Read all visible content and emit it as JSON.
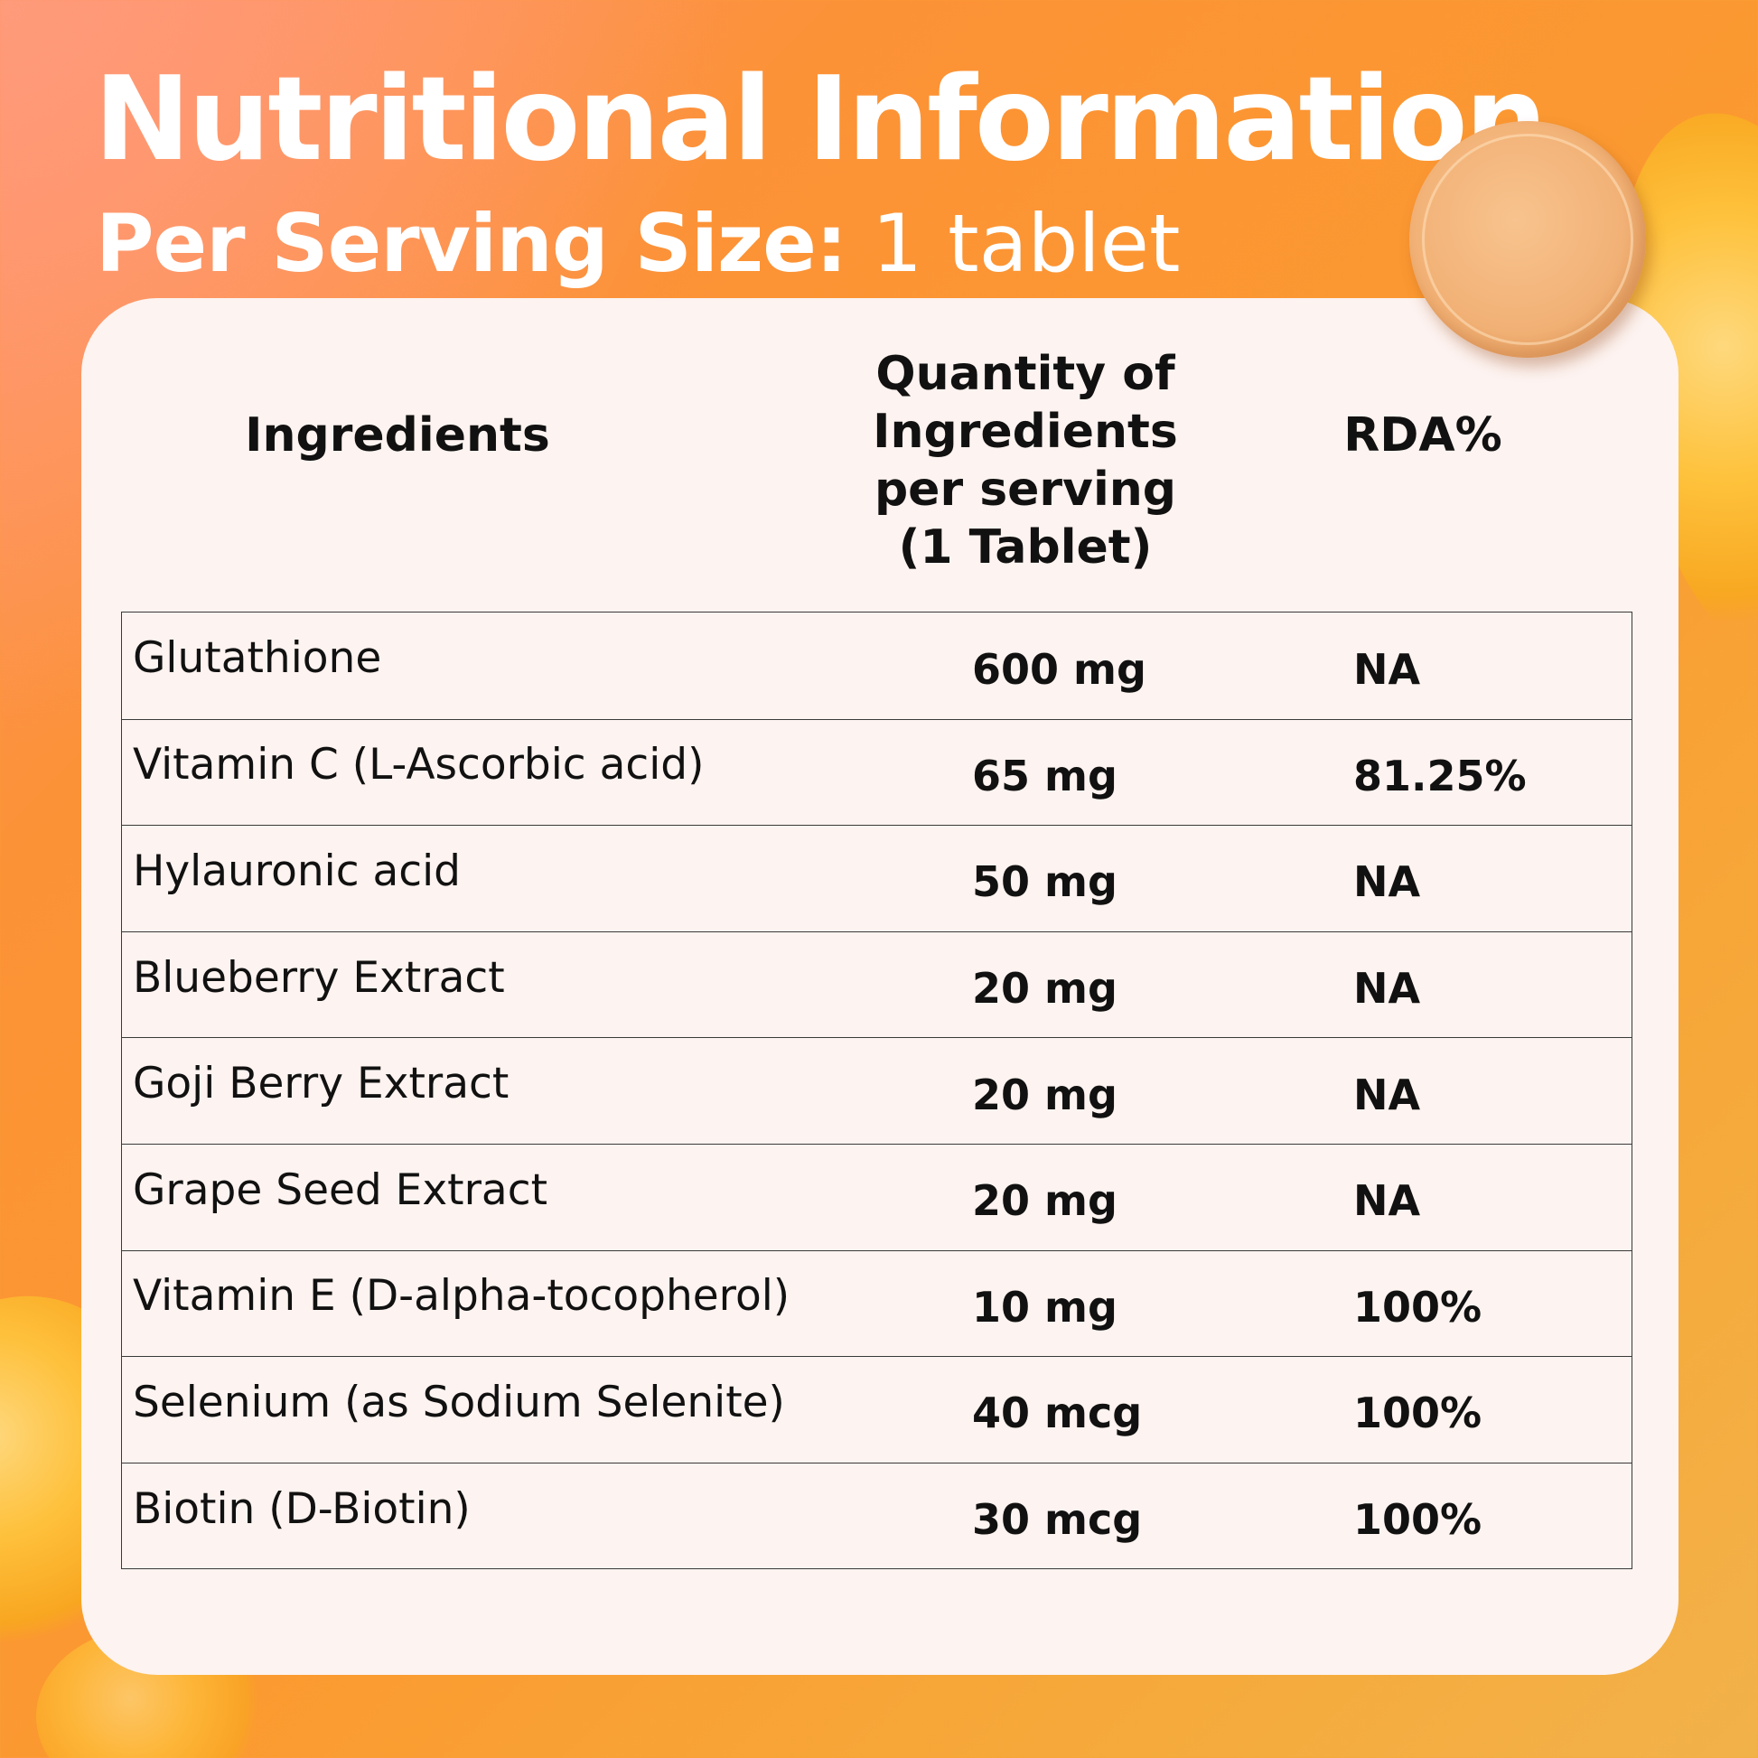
{
  "header": {
    "title": "Nutritional Information",
    "subtitle_bold": "Per Serving Size:",
    "subtitle_light": "1  tablet"
  },
  "table": {
    "columns": {
      "ingredients": "Ingredients",
      "quantity": "Quantity of\nIngredients\nper serving\n(1 Tablet)",
      "rda": "RDA%"
    },
    "rows": [
      {
        "ingredient": "Glutathione",
        "quantity": "600 mg",
        "rda": "NA"
      },
      {
        "ingredient": "Vitamin C (L-Ascorbic acid)",
        "quantity": "65 mg",
        "rda": "81.25%"
      },
      {
        "ingredient": "Hylauronic acid",
        "quantity": "50 mg",
        "rda": "NA"
      },
      {
        "ingredient": "Blueberry Extract",
        "quantity": "20 mg",
        "rda": "NA"
      },
      {
        "ingredient": "Goji Berry Extract",
        "quantity": "20 mg",
        "rda": "NA"
      },
      {
        "ingredient": "Grape Seed Extract",
        "quantity": "20 mg",
        "rda": "NA"
      },
      {
        "ingredient": "Vitamin E (D-alpha-tocopherol)",
        "quantity": "10 mg",
        "rda": "100%"
      },
      {
        "ingredient": "Selenium (as Sodium Selenite)",
        "quantity": "40 mcg",
        "rda": "100%"
      },
      {
        "ingredient": "Biotin (D-Biotin)",
        "quantity": "30 mcg",
        "rda": "100%"
      }
    ]
  },
  "colors": {
    "background": "#fb9a30",
    "card": "#fdf3f0",
    "text": "#111111",
    "title": "#ffffff"
  }
}
